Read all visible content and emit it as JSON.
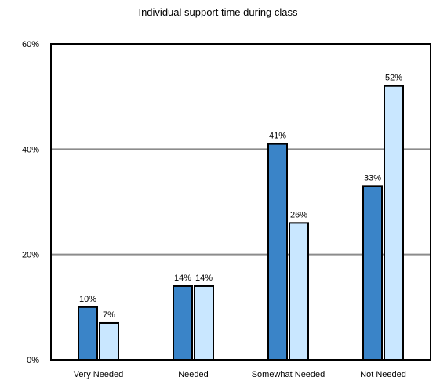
{
  "chart_data": {
    "type": "bar",
    "title": "Individual support time during class",
    "categories": [
      "Very Needed",
      "Needed",
      "Somewhat Needed",
      "Not Needed"
    ],
    "series": [
      {
        "values": [
          10,
          14,
          41,
          33
        ],
        "labels": [
          "10%",
          "14%",
          "41%",
          "33%"
        ],
        "color": "#3a84c8"
      },
      {
        "values": [
          7,
          14,
          26,
          52
        ],
        "labels": [
          "7%",
          "14%",
          "26%",
          "52%"
        ],
        "color": "#c9e7ff"
      }
    ],
    "ylim": [
      0,
      60
    ],
    "yticks": [
      0,
      20,
      40,
      60
    ],
    "ytick_labels": [
      "0%",
      "20%",
      "40%",
      "60%"
    ],
    "grid": true,
    "bar_outline_color": "#000000",
    "gridline_color": "#8c8c8c"
  }
}
